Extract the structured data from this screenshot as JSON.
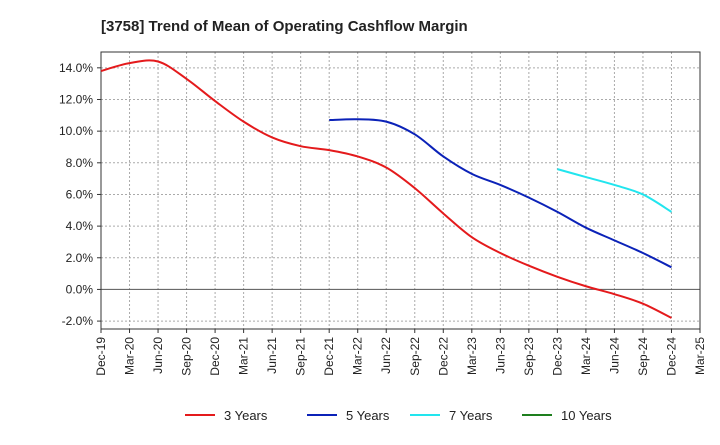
{
  "chart_data": {
    "type": "line",
    "title": "[3758]  Trend of Mean of Operating Cashflow Margin",
    "xlabel": "",
    "ylabel": "",
    "x": [
      "Dec-19",
      "Mar-20",
      "Jun-20",
      "Sep-20",
      "Dec-20",
      "Mar-21",
      "Jun-21",
      "Sep-21",
      "Dec-21",
      "Mar-22",
      "Jun-22",
      "Sep-22",
      "Dec-22",
      "Mar-23",
      "Jun-23",
      "Sep-23",
      "Dec-23",
      "Mar-24",
      "Jun-24",
      "Sep-24",
      "Dec-24",
      "Mar-25"
    ],
    "y_ticks": [
      "14.0%",
      "12.0%",
      "10.0%",
      "8.0%",
      "6.0%",
      "4.0%",
      "2.0%",
      "0.0%",
      "-2.0%"
    ],
    "ylim": [
      -2.5,
      15.0
    ],
    "grid": true,
    "legend_position": "bottom",
    "series": [
      {
        "name": "3 Years",
        "color": "#e41a1c",
        "values": [
          13.8,
          14.3,
          14.4,
          13.3,
          11.9,
          10.6,
          9.6,
          9.05,
          8.8,
          8.4,
          7.7,
          6.4,
          4.8,
          3.3,
          2.3,
          1.5,
          0.8,
          0.2,
          -0.3,
          -0.9,
          -1.8,
          null
        ]
      },
      {
        "name": "5 Years",
        "color": "#0b22b8",
        "values": [
          null,
          null,
          null,
          null,
          null,
          null,
          null,
          null,
          10.7,
          10.75,
          10.6,
          9.8,
          8.4,
          7.3,
          6.6,
          5.8,
          4.9,
          3.9,
          3.1,
          2.3,
          1.4,
          null
        ]
      },
      {
        "name": "7 Years",
        "color": "#22e5ee",
        "values": [
          null,
          null,
          null,
          null,
          null,
          null,
          null,
          null,
          null,
          null,
          null,
          null,
          null,
          null,
          null,
          null,
          7.6,
          7.1,
          6.6,
          6.0,
          4.9,
          null
        ]
      },
      {
        "name": "10 Years",
        "color": "#1e7f1e",
        "values": [
          null,
          null,
          null,
          null,
          null,
          null,
          null,
          null,
          null,
          null,
          null,
          null,
          null,
          null,
          null,
          null,
          null,
          null,
          null,
          null,
          null,
          null
        ]
      }
    ]
  }
}
